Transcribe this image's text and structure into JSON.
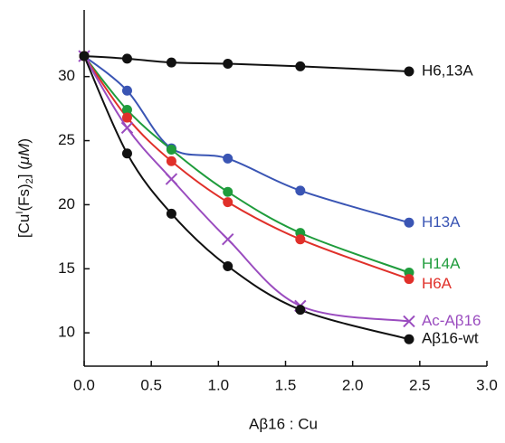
{
  "chart_data": {
    "type": "scatter",
    "x_label": "Aβ16 : Cu",
    "y_label": [
      "[Cu",
      "I",
      "(Fs)",
      "2",
      "] (",
      "μM",
      ")"
    ],
    "xlim": [
      0,
      3.0
    ],
    "ylim": [
      7.4,
      35.2
    ],
    "xticks": [
      {
        "value": 0,
        "label": "0.0"
      },
      {
        "value": 0.5,
        "label": "0.5"
      },
      {
        "value": 1,
        "label": "1.0"
      },
      {
        "value": 1.5,
        "label": "1.5"
      },
      {
        "value": 2,
        "label": "2.0"
      },
      {
        "value": 2.5,
        "label": "2.5"
      },
      {
        "value": 3,
        "label": "3.0"
      }
    ],
    "yticks": [
      10,
      15,
      20,
      25,
      30
    ],
    "x": [
      0,
      0.32,
      0.65,
      1.07,
      1.61,
      2.42
    ],
    "series": [
      {
        "name": "H6,13A",
        "color": "#111111",
        "marker": "circle",
        "values": [
          31.6,
          31.4,
          31.1,
          31.0,
          30.8,
          30.4
        ]
      },
      {
        "name": "H13A",
        "color": "#3a55b4",
        "marker": "circle",
        "values": [
          31.6,
          28.9,
          24.4,
          23.6,
          21.1,
          18.6
        ]
      },
      {
        "name": "H14A",
        "color": "#1f9c3c",
        "marker": "circle",
        "values": [
          31.6,
          27.4,
          24.3,
          21.0,
          17.8,
          14.7
        ]
      },
      {
        "name": "H6A",
        "color": "#e0302a",
        "marker": "circle",
        "values": [
          31.6,
          26.8,
          23.4,
          20.2,
          17.3,
          14.2
        ]
      },
      {
        "name": "Ac-Aβ16",
        "color": "#9a4cbf",
        "marker": "x",
        "values": [
          31.6,
          26.0,
          22.0,
          17.3,
          12.1,
          10.9
        ]
      },
      {
        "name": "Aβ16-wt",
        "color": "#111111",
        "marker": "circle",
        "values": [
          31.6,
          24.0,
          19.3,
          15.2,
          11.8,
          9.5
        ]
      }
    ]
  }
}
